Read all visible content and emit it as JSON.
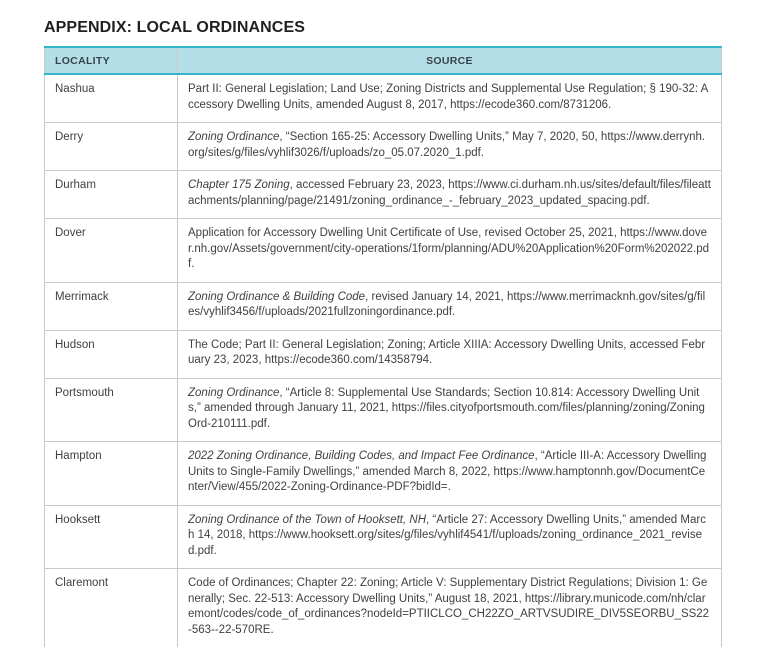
{
  "title": "APPENDIX: LOCAL ORDINANCES",
  "colors": {
    "accent_teal": "#33b5c8",
    "header_bg": "#b5dfe8",
    "header_text": "#37424c",
    "grid_gray": "#c9c9c9",
    "body_text": "#414042",
    "title_color": "#231f20"
  },
  "table": {
    "columns": [
      "LOCALITY",
      "SOURCE"
    ],
    "rows": [
      {
        "locality": "Nashua",
        "source": [
          {
            "italic": false,
            "text": "Part II: General Legislation; Land Use; Zoning Districts and Supplemental Use Regulation; § 190-32: Accessory Dwelling Units, amended August 8, 2017, https://ecode360.com/8731206."
          }
        ]
      },
      {
        "locality": "Derry",
        "source": [
          {
            "italic": true,
            "text": "Zoning Ordinance"
          },
          {
            "italic": false,
            "text": ", “Section 165-25: Accessory Dwelling Units,” May 7, 2020, 50,  https://www.derrynh.org/sites/g/files/vyhlif3026/f/uploads/zo_05.07.2020_1.pdf."
          }
        ]
      },
      {
        "locality": "Durham",
        "source": [
          {
            "italic": true,
            "text": "Chapter 175 Zoning"
          },
          {
            "italic": false,
            "text": ", accessed February 23, 2023, https://www.ci.durham.nh.us/sites/default/files/fileattachments/planning/page/21491/zoning_ordinance_-_february_2023_updated_spacing.pdf."
          }
        ]
      },
      {
        "locality": "Dover",
        "source": [
          {
            "italic": false,
            "text": "Application for Accessory Dwelling Unit Certificate of Use, revised October 25, 2021, https://www.dover.nh.gov/Assets/government/city-operations/1form/planning/ADU%20Application%20Form%202022.pdf."
          }
        ]
      },
      {
        "locality": "Merrimack",
        "source": [
          {
            "italic": true,
            "text": "Zoning Ordinance & Building Code"
          },
          {
            "italic": false,
            "text": ", revised January 14, 2021, https://www.merrimacknh.gov/sites/g/files/vyhlif3456/f/uploads/2021fullzoningordinance.pdf."
          }
        ]
      },
      {
        "locality": "Hudson",
        "source": [
          {
            "italic": false,
            "text": "The Code; Part II: General Legislation; Zoning; Article XIIIA: Accessory Dwelling Units, accessed February 23, 2023, https://ecode360.com/14358794."
          }
        ]
      },
      {
        "locality": "Portsmouth",
        "source": [
          {
            "italic": true,
            "text": "Zoning Ordinance"
          },
          {
            "italic": false,
            "text": ", “Article 8: Supplemental Use Standards; Section 10.814: Accessory Dwelling Units,” amended through January 11, 2021, https://files.cityofportsmouth.com/files/planning/zoning/ZoningOrd-210111.pdf."
          }
        ]
      },
      {
        "locality": "Hampton",
        "source": [
          {
            "italic": true,
            "text": "2022 Zoning Ordinance, Building Codes, and Impact Fee Ordinance"
          },
          {
            "italic": false,
            "text": ", “Article III-A: Accessory Dwelling Units to Single-Family Dwellings,” amended March 8, 2022, https://www.hamptonnh.gov/DocumentCenter/View/455/2022-Zoning-Ordinance-PDF?bidId=."
          }
        ]
      },
      {
        "locality": "Hooksett",
        "source": [
          {
            "italic": true,
            "text": "Zoning Ordinance of the Town of Hooksett, NH"
          },
          {
            "italic": false,
            "text": ", “Article 27: Accessory Dwelling Units,” amended March 14, 2018, https://www.hooksett.org/sites/g/files/vyhlif4541/f/uploads/zoning_ordinance_2021_revised.pdf."
          }
        ]
      },
      {
        "locality": "Claremont",
        "source": [
          {
            "italic": false,
            "text": "Code of Ordinances; Chapter 22: Zoning; Article V: Supplementary District Regulations; Division 1: Generally; Sec. 22-513: Accessory Dwelling Units,” August 18, 2021, https://library.municode.com/nh/claremont/codes/code_of_ordinances?nodeId=PTIICLCO_CH22ZO_ARTVSUDIRE_DIV5SEORBU_SS22-563--22-570RE."
          }
        ]
      }
    ]
  }
}
